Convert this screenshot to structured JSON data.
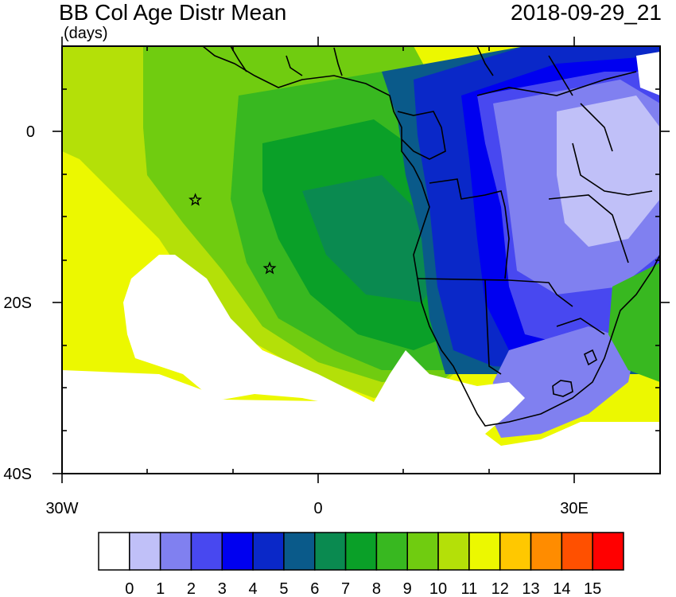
{
  "header": {
    "title": "BB Col Age Distr Mean",
    "units": "(days)",
    "datetime": "2018-09-29_21"
  },
  "axes": {
    "y_ticks": [
      {
        "label": "0",
        "lat": 0
      },
      {
        "label": "20S",
        "lat": -20
      },
      {
        "label": "40S",
        "lat": -40
      }
    ],
    "x_ticks": [
      {
        "label": "30W",
        "lon": -30
      },
      {
        "label": "0",
        "lon": 0
      },
      {
        "label": "30E",
        "lon": 30
      }
    ],
    "lon_range": [
      -30,
      40
    ],
    "lat_range": [
      -40,
      10
    ]
  },
  "markers": [
    {
      "name": "star",
      "lon": -14.4,
      "lat": -8.0
    },
    {
      "name": "star",
      "lon": -5.7,
      "lat": -16.0
    }
  ],
  "colorbar": {
    "labels": [
      "0",
      "1",
      "2",
      "3",
      "4",
      "5",
      "6",
      "7",
      "8",
      "9",
      "10",
      "11",
      "12",
      "13",
      "14",
      "15"
    ],
    "colors": [
      "#ffffff",
      "#c0c0f8",
      "#8080f0",
      "#4848f0",
      "#0000f0",
      "#0a28c8",
      "#0a5a8a",
      "#0a8a50",
      "#0aa028",
      "#38b820",
      "#70cc10",
      "#b4e008",
      "#ecf800",
      "#ffc800",
      "#ff8c00",
      "#ff5000",
      "#ff0000"
    ]
  }
}
